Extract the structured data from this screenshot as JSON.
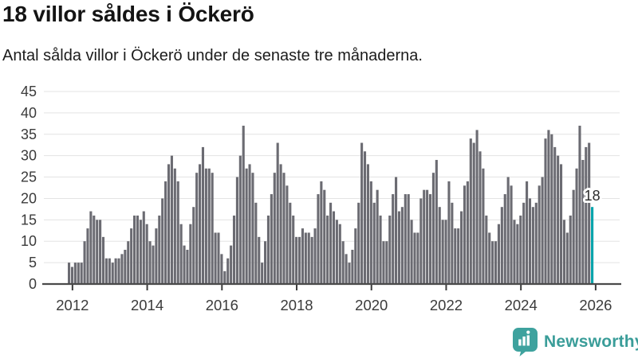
{
  "header": {
    "title": "18 villor såldes i Öckerö",
    "subtitle": "Antal sålda villor i Öckerö under de senaste tre månaderna."
  },
  "chart_data": {
    "type": "bar",
    "title": "18 villor såldes i Öckerö",
    "subtitle": "Antal sålda villor i Öckerö under de senaste tre månaderna.",
    "ylabel": "",
    "xlabel": "",
    "frequency": "monthly",
    "start_month": "2011-12",
    "values": [
      5,
      4,
      5,
      5,
      5,
      10,
      13,
      17,
      16,
      15,
      15,
      11,
      6,
      6,
      5,
      6,
      6,
      7,
      8,
      10,
      13,
      16,
      16,
      15,
      17,
      14,
      10,
      9,
      13,
      16,
      20,
      24,
      28,
      30,
      27,
      24,
      14,
      9,
      8,
      14,
      18,
      26,
      28,
      32,
      27,
      27,
      26,
      12,
      12,
      7,
      3,
      6,
      9,
      16,
      25,
      30,
      37,
      27,
      28,
      26,
      19,
      11,
      5,
      10,
      16,
      21,
      26,
      33,
      28,
      26,
      23,
      19,
      16,
      11,
      11,
      13,
      12,
      12,
      11,
      13,
      21,
      24,
      22,
      16,
      19,
      17,
      15,
      14,
      10,
      7,
      5,
      8,
      13,
      19,
      33,
      31,
      28,
      24,
      19,
      22,
      16,
      10,
      10,
      16,
      21,
      25,
      17,
      18,
      21,
      21,
      15,
      12,
      12,
      20,
      22,
      22,
      21,
      26,
      29,
      18,
      15,
      15,
      24,
      19,
      13,
      13,
      17,
      23,
      24,
      34,
      33,
      36,
      31,
      27,
      16,
      12,
      10,
      10,
      14,
      18,
      21,
      25,
      23,
      15,
      14,
      16,
      19,
      24,
      20,
      18,
      19,
      23,
      25,
      34,
      36,
      35,
      32,
      30,
      28,
      15,
      12,
      16,
      22,
      27,
      37,
      29,
      32,
      33,
      18
    ],
    "highlight_last": true,
    "annotation": {
      "text": "18",
      "value": 18
    },
    "bar_color": "#6b6b72",
    "highlight_color": "#00a3ab",
    "grid": true,
    "legend": false,
    "y_axis": {
      "min": 0,
      "max": 45,
      "tick_step": 5,
      "tick_labels": [
        "0",
        "5",
        "10",
        "15",
        "20",
        "25",
        "30",
        "35",
        "40",
        "45"
      ]
    },
    "x_axis": {
      "tick_years": [
        2012,
        2014,
        2016,
        2018,
        2020,
        2022,
        2024,
        2026
      ],
      "tick_labels": [
        "2012",
        "2014",
        "2016",
        "2018",
        "2020",
        "2022",
        "2024",
        "2026"
      ]
    }
  },
  "branding": {
    "name": "Newsworthy",
    "text_color": "#3a9d99",
    "icon_color": "#3ea29e",
    "icon": "bar-chart-speech-bubble"
  },
  "style": {
    "gridline_color": "#e3e3e3",
    "axis_color": "#4a4a4a",
    "tick_color": "#3d3d3d",
    "axis_label_color": "#3b3b3b",
    "annotation_color": "#2b2b2b",
    "background": "#ffffff"
  }
}
